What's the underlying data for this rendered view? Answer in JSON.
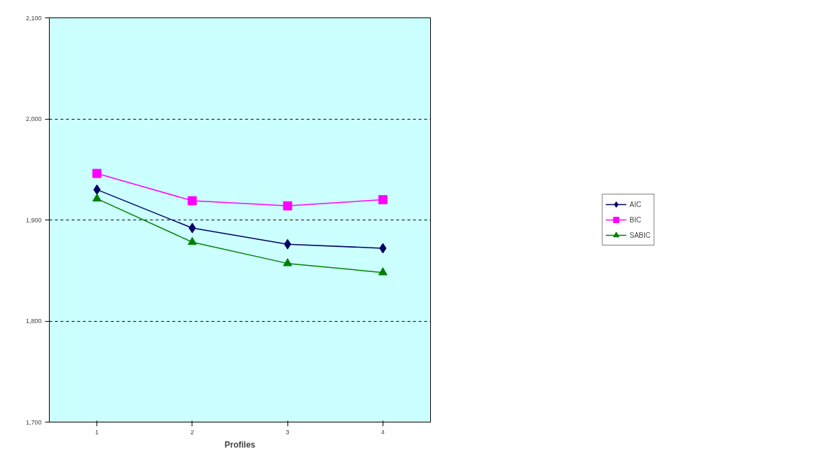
{
  "chart_data": {
    "type": "line",
    "xlabel": "Profiles",
    "categories": [
      "1",
      "2",
      "3",
      "4"
    ],
    "series": [
      {
        "name": "AIC",
        "color": "#000066",
        "marker": "diamond",
        "values": [
          1930,
          1892,
          1876,
          1872
        ]
      },
      {
        "name": "BIC",
        "color": "#ff00ff",
        "marker": "square",
        "values": [
          1946,
          1919,
          1914,
          1920
        ]
      },
      {
        "name": "SABIC",
        "color": "#008000",
        "marker": "triangle",
        "values": [
          1921,
          1878,
          1857,
          1848
        ]
      }
    ],
    "ylim": [
      1700,
      2100
    ],
    "yticks": [
      {
        "value": 1700,
        "label": "1,700"
      },
      {
        "value": 1800,
        "label": "1,800"
      },
      {
        "value": 1900,
        "label": "1,900"
      },
      {
        "value": 2000,
        "label": "2,000"
      },
      {
        "value": 2100,
        "label": "2,100"
      }
    ],
    "grid": "y",
    "legend": "right",
    "line_style": "solid"
  }
}
